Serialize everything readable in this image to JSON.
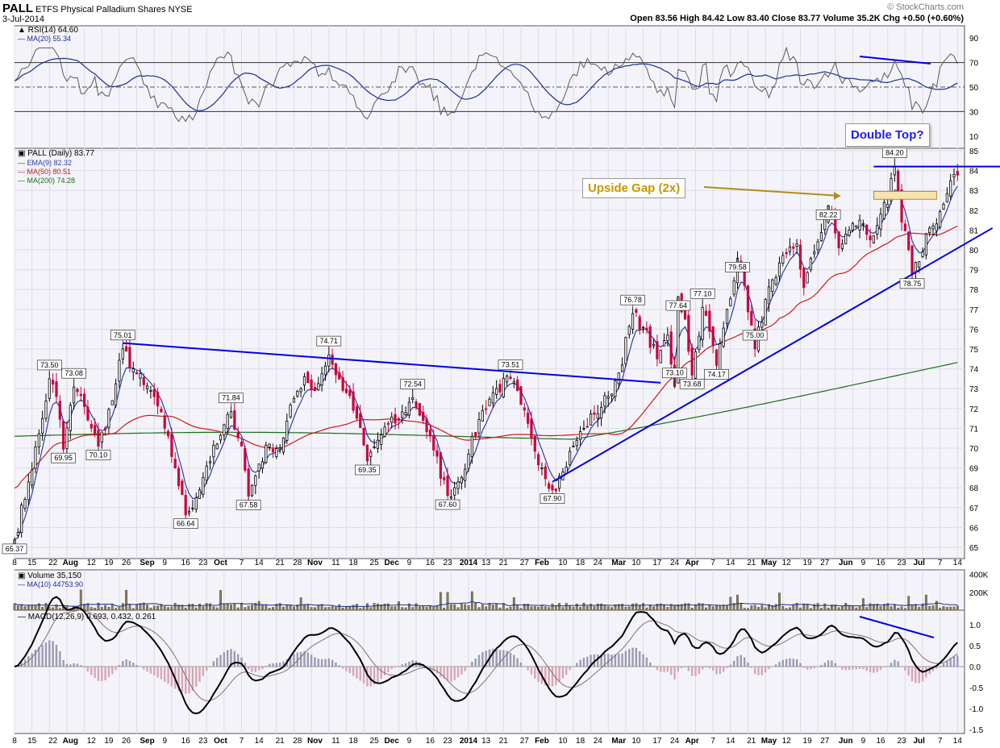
{
  "header": {
    "symbol": "PALL",
    "name": "ETFS Physical Palladium Shares",
    "exchange": "NYSE",
    "date": "3-Jul-2014",
    "ohlc": "Open 83.56  High 84.42  Low 83.40  Close 83.77  Volume 35.2K  Chg +0.50 (+0.60%)",
    "credit": "© StockCharts.com"
  },
  "panels": {
    "rsi": {
      "label": "RSI(14) 64.60",
      "ma_label": "MA(20) 55.34",
      "ticks": [
        "90",
        "70",
        "50",
        "30",
        "10"
      ]
    },
    "price": {
      "label": "PALL (Daily) 83.77",
      "ema_label": "EMA(9) 82.32",
      "ma50_label": "MA(50) 80.51",
      "ma200_label": "MA(200) 74.28",
      "ticks": [
        "85",
        "84",
        "83",
        "82",
        "81",
        "80",
        "79",
        "78",
        "77",
        "76",
        "75",
        "74",
        "73",
        "72",
        "71",
        "70",
        "69",
        "68",
        "67",
        "66",
        "65"
      ]
    },
    "volume": {
      "label": "Volume 35,150",
      "ma_label": "MA(10) 44753.90",
      "ticks": [
        "400K",
        "200K"
      ]
    },
    "macd": {
      "label": "MACD(12,26,9) 0.693, 0.432, 0.261",
      "ticks": [
        "1.0",
        "0.5",
        "0.0",
        "-0.5",
        "-1.0",
        "-1.5"
      ]
    }
  },
  "x_axis_labels": [
    "8",
    "15",
    "22",
    "Aug",
    "12",
    "19",
    "26",
    "Sep",
    "9",
    "16",
    "23",
    "Oct",
    "7",
    "14",
    "21",
    "28",
    "Nov",
    "11",
    "18",
    "25",
    "Dec",
    "9",
    "16",
    "23",
    "2014",
    "13",
    "21",
    "27",
    "Feb",
    "10",
    "18",
    "24",
    "Mar",
    "10",
    "17",
    "24",
    "Apr",
    "7",
    "14",
    "21",
    "May",
    "12",
    "19",
    "27",
    "Jun",
    "9",
    "16",
    "23",
    "Jul",
    "7",
    "14"
  ],
  "annotations": {
    "upside_gap": "Upside Gap (2x)",
    "double_top": "Double Top?"
  },
  "price_labels": [
    {
      "text": "65.37",
      "x": 0,
      "y": 65.37
    },
    {
      "text": "73.50",
      "x": 10,
      "y": 73.5
    },
    {
      "text": "69.95",
      "x": 14,
      "y": 69.95
    },
    {
      "text": "73.08",
      "x": 17,
      "y": 73.08
    },
    {
      "text": "70.10",
      "x": 24,
      "y": 70.1
    },
    {
      "text": "75.01",
      "x": 31,
      "y": 75.01
    },
    {
      "text": "66.64",
      "x": 49,
      "y": 66.64
    },
    {
      "text": "71.84",
      "x": 62,
      "y": 71.84
    },
    {
      "text": "67.58",
      "x": 67,
      "y": 67.58
    },
    {
      "text": "74.71",
      "x": 90,
      "y": 74.71
    },
    {
      "text": "69.35",
      "x": 101,
      "y": 69.35
    },
    {
      "text": "72.54",
      "x": 114,
      "y": 72.54
    },
    {
      "text": "67.60",
      "x": 124,
      "y": 67.6
    },
    {
      "text": "73.51",
      "x": 142,
      "y": 73.51
    },
    {
      "text": "67.90",
      "x": 154,
      "y": 67.9
    },
    {
      "text": "76.78",
      "x": 177,
      "y": 76.78
    },
    {
      "text": "77.64",
      "x": 190,
      "y": 77.64
    },
    {
      "text": "73.10",
      "x": 189,
      "y": 73.1
    },
    {
      "text": "73.68",
      "x": 194,
      "y": 73.68
    },
    {
      "text": "77.10",
      "x": 197,
      "y": 77.1
    },
    {
      "text": "74.17",
      "x": 201,
      "y": 74.17
    },
    {
      "text": "79.58",
      "x": 207,
      "y": 79.58
    },
    {
      "text": "75.00",
      "x": 212,
      "y": 75.0
    },
    {
      "text": "82.22",
      "x": 233,
      "y": 82.22
    },
    {
      "text": "84.20",
      "x": 252,
      "y": 84.2
    },
    {
      "text": "78.75",
      "x": 257,
      "y": 78.75
    }
  ],
  "chart_data": {
    "type": "candlestick",
    "title": "PALL ETFS Physical Palladium Shares NYSE",
    "x_range_trading_days": [
      0,
      272
    ],
    "price_range": [
      64.6,
      85.2
    ],
    "anchors": [
      [
        0,
        65.37
      ],
      [
        4,
        68.3
      ],
      [
        8,
        71.5
      ],
      [
        10,
        73.5
      ],
      [
        12,
        72.6
      ],
      [
        14,
        69.95
      ],
      [
        17,
        73.08
      ],
      [
        20,
        72.1
      ],
      [
        24,
        70.1
      ],
      [
        28,
        72.4
      ],
      [
        31,
        75.01
      ],
      [
        34,
        74.0
      ],
      [
        37,
        73.2
      ],
      [
        40,
        72.6
      ],
      [
        43,
        71.0
      ],
      [
        46,
        69.0
      ],
      [
        49,
        66.64
      ],
      [
        52,
        67.5
      ],
      [
        55,
        69.1
      ],
      [
        58,
        70.2
      ],
      [
        62,
        71.84
      ],
      [
        65,
        70.1
      ],
      [
        67,
        67.58
      ],
      [
        70,
        69.2
      ],
      [
        73,
        70.2
      ],
      [
        76,
        70.0
      ],
      [
        80,
        72.5
      ],
      [
        83,
        73.6
      ],
      [
        86,
        72.9
      ],
      [
        90,
        74.71
      ],
      [
        92,
        73.7
      ],
      [
        95,
        72.8
      ],
      [
        98,
        71.5
      ],
      [
        101,
        69.35
      ],
      [
        104,
        70.4
      ],
      [
        107,
        71.2
      ],
      [
        110,
        71.4
      ],
      [
        114,
        72.54
      ],
      [
        117,
        71.4
      ],
      [
        120,
        69.9
      ],
      [
        124,
        67.6
      ],
      [
        127,
        68.3
      ],
      [
        130,
        69.7
      ],
      [
        134,
        71.9
      ],
      [
        137,
        72.8
      ],
      [
        142,
        73.51
      ],
      [
        145,
        72.2
      ],
      [
        148,
        70.5
      ],
      [
        151,
        69.0
      ],
      [
        154,
        67.9
      ],
      [
        157,
        68.8
      ],
      [
        160,
        70.1
      ],
      [
        163,
        71.0
      ],
      [
        166,
        71.7
      ],
      [
        170,
        72.6
      ],
      [
        173,
        73.8
      ],
      [
        177,
        76.78
      ],
      [
        180,
        76.1
      ],
      [
        184,
        74.5
      ],
      [
        187,
        75.7
      ],
      [
        189,
        73.1
      ],
      [
        190,
        77.64
      ],
      [
        192,
        76.5
      ],
      [
        194,
        73.68
      ],
      [
        197,
        77.1
      ],
      [
        199,
        75.9
      ],
      [
        201,
        74.17
      ],
      [
        204,
        77.0
      ],
      [
        207,
        79.58
      ],
      [
        209,
        78.2
      ],
      [
        212,
        75.0
      ],
      [
        215,
        77.5
      ],
      [
        218,
        78.6
      ],
      [
        221,
        79.8
      ],
      [
        224,
        80.3
      ],
      [
        226,
        78.1
      ],
      [
        229,
        79.9
      ],
      [
        233,
        82.22
      ],
      [
        236,
        80.1
      ],
      [
        239,
        81.0
      ],
      [
        242,
        81.5
      ],
      [
        245,
        80.5
      ],
      [
        248,
        81.8
      ],
      [
        250,
        82.3
      ],
      [
        252,
        84.2
      ],
      [
        254,
        81.4
      ],
      [
        256,
        80.0
      ],
      [
        257,
        78.75
      ],
      [
        259,
        79.4
      ],
      [
        261,
        80.8
      ],
      [
        263,
        81.2
      ],
      [
        266,
        82.3
      ],
      [
        269,
        83.8
      ],
      [
        270,
        83.77
      ]
    ],
    "series": [
      {
        "name": "PALL (Daily)",
        "last": 83.77
      },
      {
        "name": "EMA(9)",
        "last": 82.32
      },
      {
        "name": "MA(50)",
        "last": 80.51
      },
      {
        "name": "MA(200)",
        "last": 74.28
      }
    ],
    "trendlines": [
      {
        "from": [
          31,
          75.3
        ],
        "to": [
          185,
          73.3
        ],
        "color": "#0000e6"
      },
      {
        "from": [
          154,
          68.3
        ],
        "to": [
          280,
          81.1
        ],
        "color": "#0000e6"
      },
      {
        "from": [
          246,
          84.2
        ],
        "to": [
          286,
          84.2
        ],
        "color": "#0000e6"
      }
    ],
    "rsi": {
      "range": [
        0,
        100
      ],
      "levels": [
        70,
        50,
        30
      ],
      "last": 64.6,
      "ma_last": 55.34
    },
    "volume": {
      "ticks": [
        "400K",
        "200K"
      ],
      "last": 35150,
      "ma_last": 44753.9
    },
    "macd": {
      "range": [
        -1.6,
        1.3
      ],
      "macd_last": 0.693,
      "signal_last": 0.432,
      "hist_last": 0.261
    },
    "colors": {
      "up": "#000000",
      "down": "#c8003c",
      "ema9": "#2f3ea8",
      "ma50": "#d01818",
      "ma200": "#1a6e1a",
      "rsi": "#5a5a5a",
      "trend": "#0000e6",
      "gap_line": "#b08c1a",
      "gap_fill": "#f6e3b0"
    }
  }
}
